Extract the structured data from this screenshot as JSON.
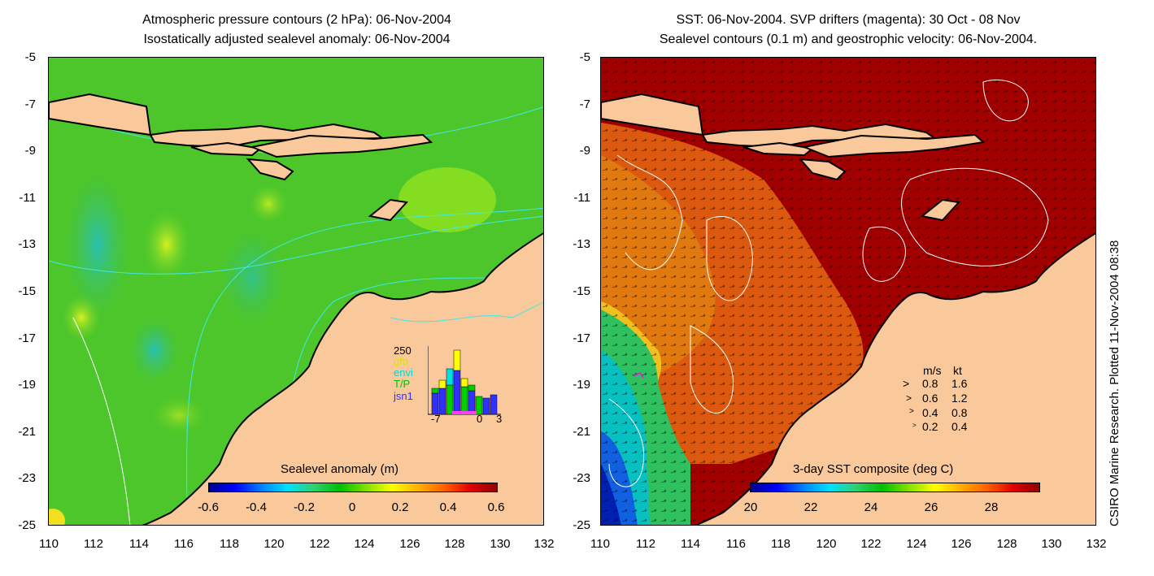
{
  "left_panel": {
    "title_line1": "Atmospheric pressure contours (2 hPa): 06-Nov-2004",
    "title_line2": "Isostatically adjusted sealevel anomaly: 06-Nov-2004",
    "colorbar_title": "Sealevel anomaly (m)",
    "colorbar_ticks": [
      "-0.6",
      "-0.4",
      "-0.2",
      "0",
      "0.2",
      "0.4",
      "0.6"
    ],
    "inset": {
      "ymax_label": "250",
      "series_labels": [
        "gfo",
        "envi",
        "T/P",
        "jsn1"
      ],
      "series_colors": [
        "#ffff00",
        "#00e0e0",
        "#00d000",
        "#3030ff"
      ],
      "x_labels": [
        "-7",
        "0",
        "3"
      ]
    }
  },
  "right_panel": {
    "title_line1": "SST: 06-Nov-2004. SVP drifters (magenta): 30 Oct - 08 Nov",
    "title_line2": "Sealevel contours (0.1 m) and geostrophic velocity: 06-Nov-2004.",
    "colorbar_title": "3-day SST composite (deg C)",
    "colorbar_ticks": [
      "20",
      "22",
      "24",
      "26",
      "28"
    ],
    "velocity_legend": {
      "header_ms": "m/s",
      "header_kt": "kt",
      "rows": [
        {
          "ms": "0.8",
          "kt": "1.6"
        },
        {
          "ms": "0.6",
          "kt": "1.2"
        },
        {
          "ms": "0.4",
          "kt": "0.8"
        },
        {
          "ms": "0.2",
          "kt": "0.4"
        }
      ]
    }
  },
  "axes": {
    "y_ticks": [
      "-5",
      "-7",
      "-9",
      "-11",
      "-13",
      "-15",
      "-17",
      "-19",
      "-21",
      "-23",
      "-25"
    ],
    "x_ticks": [
      "110",
      "112",
      "114",
      "116",
      "118",
      "120",
      "122",
      "124",
      "126",
      "128",
      "130",
      "132"
    ]
  },
  "credit": "CSIRO Marine Research. Plotted 11-Nov-2004 08:38",
  "colors": {
    "land": "#f9c89b",
    "sla_background": "#4cc62a",
    "sst_background": "#a00000"
  }
}
